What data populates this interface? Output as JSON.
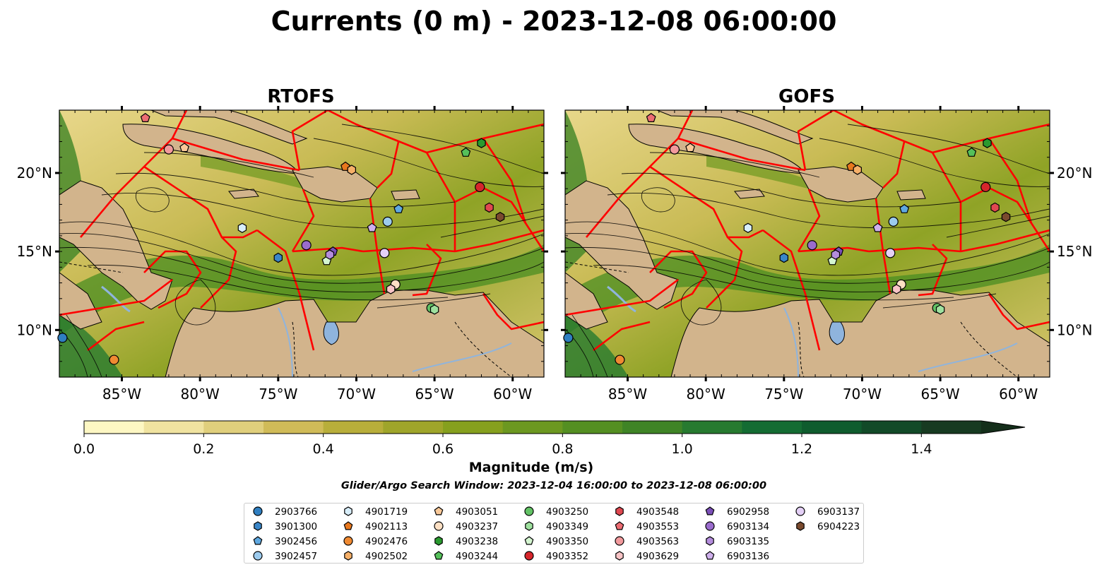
{
  "chart_data": {
    "type": "heatmap",
    "title": "Currents (0 m) - 2023-12-08 06:00:00",
    "panels": [
      {
        "title": "RTOFS"
      },
      {
        "title": "GOFS"
      }
    ],
    "lon_range": [
      -89,
      -58
    ],
    "lat_range": [
      7,
      24
    ],
    "x_ticks": [
      "85°W",
      "80°W",
      "75°W",
      "70°W",
      "65°W",
      "60°W"
    ],
    "x_tick_values": [
      -85,
      -80,
      -75,
      -70,
      -65,
      -60
    ],
    "y_ticks": [
      "20°N",
      "15°N",
      "10°N"
    ],
    "y_tick_values": [
      20,
      15,
      10
    ],
    "colorbar": {
      "label": "Magnitude (m/s)",
      "range": [
        0,
        1.5
      ],
      "extend": "max",
      "ticks": [
        "0.0",
        "0.2",
        "0.4",
        "0.6",
        "0.8",
        "1.0",
        "1.2",
        "1.4"
      ],
      "tick_values": [
        0,
        0.2,
        0.4,
        0.6,
        0.8,
        1.0,
        1.2,
        1.4
      ],
      "colors": [
        "#fdf7c3",
        "#f0e3a0",
        "#e0cf7c",
        "#d0bb58",
        "#b8ae3a",
        "#9fa52a",
        "#86a01e",
        "#6c9820",
        "#548f22",
        "#3f8426",
        "#277a30",
        "#146c33",
        "#0f5c2e",
        "#124a28",
        "#173a21"
      ]
    },
    "search_window": "Glider/Argo Search Window: 2023-12-04 16:00:00 to 2023-12-08 06:00:00",
    "floats": [
      {
        "id": "2903766",
        "marker": "circle",
        "color": "#2f7fc1",
        "lon": -88.8,
        "lat": 9.5
      },
      {
        "id": "3901300",
        "marker": "hexagon",
        "color": "#3a86c8",
        "lon": -75.0,
        "lat": 14.6
      },
      {
        "id": "3902456",
        "marker": "pentagon",
        "color": "#5fa8e0",
        "lon": -67.3,
        "lat": 17.7
      },
      {
        "id": "3902457",
        "marker": "circle",
        "color": "#9ccbee",
        "lon": -68.0,
        "lat": 16.9
      },
      {
        "id": "4901719",
        "marker": "hexagon",
        "color": "#d8eefa",
        "lon": -77.3,
        "lat": 16.5
      },
      {
        "id": "4902113",
        "marker": "pentagon",
        "color": "#e8781e",
        "lon": -70.7,
        "lat": 20.4
      },
      {
        "id": "4902476",
        "marker": "circle",
        "color": "#f08a32",
        "lon": -85.5,
        "lat": 8.1
      },
      {
        "id": "4902502",
        "marker": "hexagon",
        "color": "#f6b069",
        "lon": -70.3,
        "lat": 20.2
      },
      {
        "id": "4903051",
        "marker": "pentagon",
        "color": "#f9c999",
        "lon": -81.0,
        "lat": 21.6
      },
      {
        "id": "4903237",
        "marker": "circle",
        "color": "#fde0c4",
        "lon": -67.5,
        "lat": 12.9
      },
      {
        "id": "4903238",
        "marker": "hexagon",
        "color": "#2a9a2f",
        "lon": -62.0,
        "lat": 21.9
      },
      {
        "id": "4903244",
        "marker": "pentagon",
        "color": "#55c05a",
        "lon": -63.0,
        "lat": 21.3
      },
      {
        "id": "4903250",
        "marker": "circle",
        "color": "#62c265",
        "lon": -65.2,
        "lat": 11.4
      },
      {
        "id": "4903349",
        "marker": "hexagon",
        "color": "#9fe19f",
        "lon": -65.0,
        "lat": 11.3
      },
      {
        "id": "4903350",
        "marker": "pentagon",
        "color": "#d4f5d0",
        "lon": -71.9,
        "lat": 14.4
      },
      {
        "id": "4903352",
        "marker": "circle",
        "color": "#d6262b",
        "lon": -62.1,
        "lat": 19.1
      },
      {
        "id": "4903548",
        "marker": "hexagon",
        "color": "#e04850",
        "lon": -61.5,
        "lat": 17.8
      },
      {
        "id": "4903553",
        "marker": "pentagon",
        "color": "#ec6c72",
        "lon": -83.5,
        "lat": 23.5
      },
      {
        "id": "4903563",
        "marker": "circle",
        "color": "#f29a9d",
        "lon": -82.0,
        "lat": 21.5
      },
      {
        "id": "4903629",
        "marker": "hexagon",
        "color": "#f8c4c6",
        "lon": -67.8,
        "lat": 12.6
      },
      {
        "id": "6902958",
        "marker": "pentagon",
        "color": "#7b4fb8",
        "lon": -71.5,
        "lat": 15.0
      },
      {
        "id": "6903134",
        "marker": "circle",
        "color": "#9a6ccd",
        "lon": -73.2,
        "lat": 15.4
      },
      {
        "id": "6903135",
        "marker": "hexagon",
        "color": "#b48ddc",
        "lon": -71.7,
        "lat": 14.8
      },
      {
        "id": "6903136",
        "marker": "pentagon",
        "color": "#cfb0ec",
        "lon": -69.0,
        "lat": 16.5
      },
      {
        "id": "6903137",
        "marker": "circle",
        "color": "#e4d0f6",
        "lon": -68.2,
        "lat": 14.9
      },
      {
        "id": "6904223",
        "marker": "hexagon",
        "color": "#7a4a2e",
        "lon": -60.8,
        "lat": 17.2
      }
    ]
  },
  "colors": {
    "land": "#d2b48c",
    "lake": "#8fb4dd",
    "eez": "#ff0000",
    "streamline": "#000000"
  }
}
